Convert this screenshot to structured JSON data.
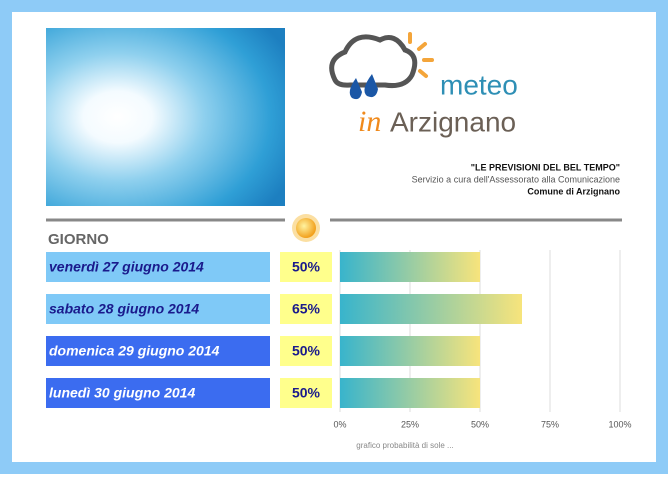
{
  "header": {
    "logo_word": "meteo",
    "logo_in": "in",
    "logo_town": "Arzignano",
    "slogan": "\"LE PREVISIONI DEL BEL TEMPO\"",
    "service": "Servizio a cura dell'Assessorato alla Comunicazione",
    "town": "Comune di Arzignano"
  },
  "chart_data": {
    "type": "bar",
    "orientation": "horizontal",
    "category_header": "GIORNO",
    "categories": [
      "venerdì 27 giugno 2014",
      "sabato 28 giugno 2014",
      "domenica 29 giugno 2014",
      "lunedì 30 giugno 2014"
    ],
    "category_colors": [
      "#7fc9f7",
      "#7fc9f7",
      "#3b6cf0",
      "#3b6cf0"
    ],
    "values": [
      50,
      65,
      50,
      50
    ],
    "value_labels": [
      "50%",
      "65%",
      "50%",
      "50%"
    ],
    "colors": [
      "#38b4cc",
      "#f7e47c"
    ],
    "xlim": [
      0,
      100
    ],
    "xticks": [
      {
        "value": 0,
        "label": "0%"
      },
      {
        "value": 25,
        "label": "25%"
      },
      {
        "value": 50,
        "label": "50%"
      },
      {
        "value": 75,
        "label": "75%"
      },
      {
        "value": 100,
        "label": "100%"
      }
    ],
    "grid": true,
    "xlabel": "grafico probabilità di sole ..."
  }
}
